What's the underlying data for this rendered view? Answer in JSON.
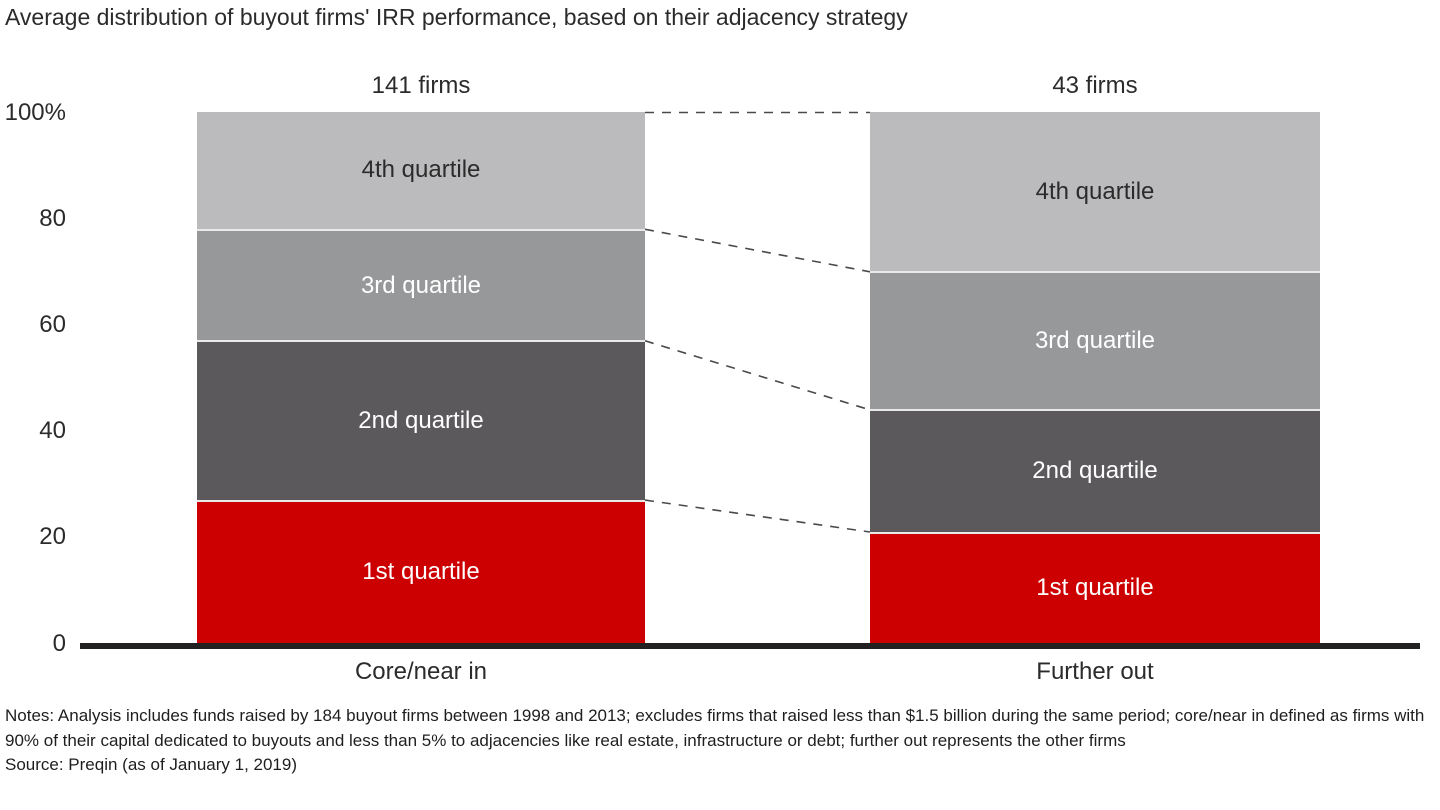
{
  "title": "Average distribution of buyout firms' IRR performance, based on their adjacency strategy",
  "chart_data": {
    "type": "bar",
    "stacked": true,
    "unit": "percent",
    "title": "Average distribution of buyout firms' IRR performance, based on their adjacency strategy",
    "categories": [
      "Core/near in",
      "Further out"
    ],
    "bar_headers": [
      "141 firms",
      "43 firms"
    ],
    "series": [
      {
        "name": "1st quartile",
        "values": [
          27,
          21
        ],
        "color": "#CC0000",
        "label_color": "#FFFFFF"
      },
      {
        "name": "2nd quartile",
        "values": [
          30,
          23
        ],
        "color": "#5B595B",
        "label_color": "#FFFFFF"
      },
      {
        "name": "3rd quartile",
        "values": [
          21,
          26
        ],
        "color": "#97989A",
        "label_color": "#FFFFFF"
      },
      {
        "name": "4th quartile",
        "values": [
          22,
          30
        ],
        "color": "#BBBBBD",
        "label_color": "#2B2B2B"
      }
    ],
    "yticks": {
      "labels": [
        "100%",
        "80",
        "60",
        "40",
        "20",
        "0"
      ],
      "values": [
        100,
        80,
        60,
        40,
        20,
        0
      ]
    },
    "ylim": [
      0,
      100
    ],
    "grid": false,
    "legend": "none",
    "connectors": "dashed lines join quartile boundaries of the two bars"
  },
  "notes": "Notes: Analysis includes funds raised by 184 buyout firms between 1998 and 2013; excludes firms that raised less than $1.5 billion during the same period; core/near in defined as firms with 90% of their capital dedicated to buyouts and less than 5% to adjacencies like real estate, infrastructure or debt; further out represents the other firms",
  "source": "Source: Preqin (as of January 1, 2019)",
  "colors": {
    "accent_red": "#CC0000",
    "dark_gray": "#5B595B",
    "medium_gray": "#97989A",
    "light_gray": "#BBBBBD",
    "axis": "#232021",
    "connector": "#4A4A4C",
    "separator": "#E9E9EA",
    "text": "#2B2B2B"
  }
}
